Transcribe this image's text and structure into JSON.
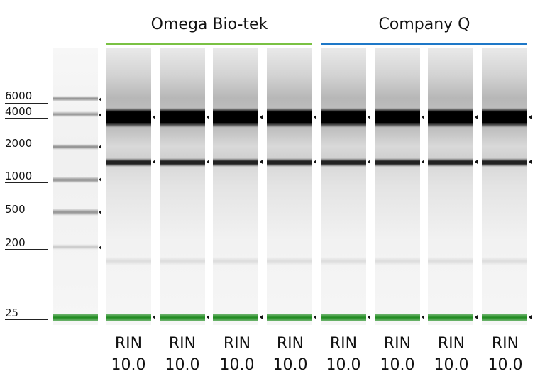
{
  "groups": [
    {
      "label": "Omega Bio-tek",
      "color": "#7ac143"
    },
    {
      "label": "Company Q",
      "color": "#1e78c8"
    }
  ],
  "ladder": {
    "sizes": [
      "6000",
      "4000",
      "2000",
      "1000",
      "500",
      "200",
      "25"
    ]
  },
  "lanes": [
    {
      "rin_label": "RIN",
      "rin_value": "10.0",
      "group": "Omega Bio-tek"
    },
    {
      "rin_label": "RIN",
      "rin_value": "10.0",
      "group": "Omega Bio-tek"
    },
    {
      "rin_label": "RIN",
      "rin_value": "10.0",
      "group": "Omega Bio-tek"
    },
    {
      "rin_label": "RIN",
      "rin_value": "10.0",
      "group": "Omega Bio-tek"
    },
    {
      "rin_label": "RIN",
      "rin_value": "10.0",
      "group": "Company Q"
    },
    {
      "rin_label": "RIN",
      "rin_value": "10.0",
      "group": "Company Q"
    },
    {
      "rin_label": "RIN",
      "rin_value": "10.0",
      "group": "Company Q"
    },
    {
      "rin_label": "RIN",
      "rin_value": "10.0",
      "group": "Company Q"
    }
  ],
  "colors": {
    "marker_band": "#1f8a1f",
    "band_dark": "#000000"
  }
}
